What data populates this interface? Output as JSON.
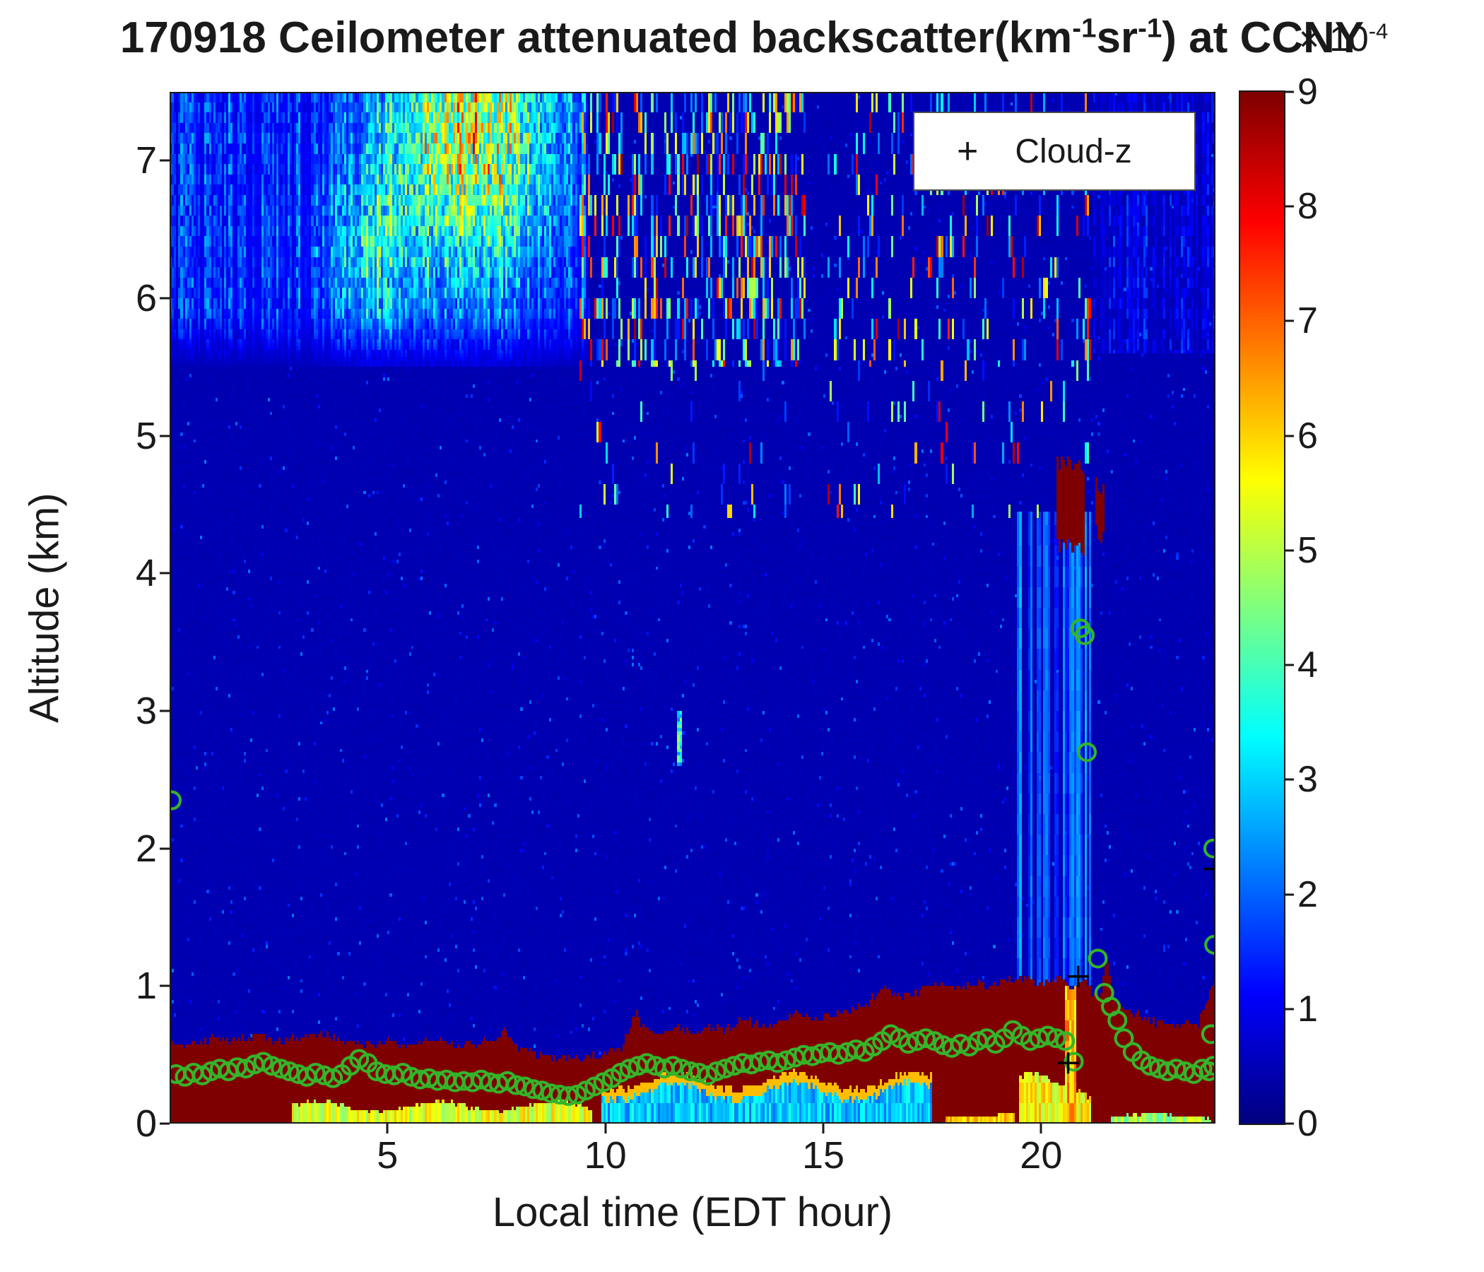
{
  "chart_data": {
    "type": "heatmap",
    "title_parts": {
      "prefix": "170918 Ceilometer attenuated backscatter(km",
      "sup1": "-1",
      "mid": "sr",
      "sup2": "-1",
      "suffix": ") at CCNY"
    },
    "xlabel": "Local time (EDT hour)",
    "ylabel": "Altitude (km)",
    "xlim": [
      0,
      24
    ],
    "ylim": [
      0,
      7.5
    ],
    "xticks": [
      5,
      10,
      15,
      20
    ],
    "yticks": [
      0,
      1,
      2,
      3,
      4,
      5,
      6,
      7
    ],
    "colorbar": {
      "min": 0,
      "max": 9,
      "ticks": [
        0,
        1,
        2,
        3,
        4,
        5,
        6,
        7,
        8,
        9
      ],
      "multiplier_parts": {
        "base": "× 10",
        "exp": "-4"
      },
      "colormap": "jet"
    },
    "legend": {
      "marker": "+",
      "label": "Cloud-z"
    },
    "colors": {
      "circle": "#35b42a",
      "plus": "#000000",
      "axis": "#1a1a1a"
    },
    "series": {
      "pbl_height_circles": [
        [
          0.05,
          2.35
        ],
        [
          0.15,
          0.36
        ],
        [
          0.35,
          0.34
        ],
        [
          0.55,
          0.37
        ],
        [
          0.75,
          0.35
        ],
        [
          0.95,
          0.38
        ],
        [
          1.15,
          0.4
        ],
        [
          1.35,
          0.38
        ],
        [
          1.55,
          0.41
        ],
        [
          1.75,
          0.4
        ],
        [
          1.95,
          0.43
        ],
        [
          2.15,
          0.45
        ],
        [
          2.35,
          0.42
        ],
        [
          2.55,
          0.4
        ],
        [
          2.75,
          0.38
        ],
        [
          2.95,
          0.36
        ],
        [
          3.15,
          0.34
        ],
        [
          3.35,
          0.37
        ],
        [
          3.55,
          0.35
        ],
        [
          3.75,
          0.33
        ],
        [
          3.95,
          0.36
        ],
        [
          4.15,
          0.42
        ],
        [
          4.35,
          0.47
        ],
        [
          4.55,
          0.44
        ],
        [
          4.75,
          0.38
        ],
        [
          4.95,
          0.36
        ],
        [
          5.15,
          0.35
        ],
        [
          5.35,
          0.37
        ],
        [
          5.55,
          0.34
        ],
        [
          5.75,
          0.32
        ],
        [
          5.95,
          0.33
        ],
        [
          6.15,
          0.31
        ],
        [
          6.35,
          0.32
        ],
        [
          6.55,
          0.3
        ],
        [
          6.75,
          0.31
        ],
        [
          6.95,
          0.3
        ],
        [
          7.15,
          0.32
        ],
        [
          7.35,
          0.3
        ],
        [
          7.55,
          0.29
        ],
        [
          7.75,
          0.31
        ],
        [
          7.95,
          0.28
        ],
        [
          8.15,
          0.27
        ],
        [
          8.35,
          0.25
        ],
        [
          8.55,
          0.24
        ],
        [
          8.75,
          0.22
        ],
        [
          8.95,
          0.21
        ],
        [
          9.15,
          0.2
        ],
        [
          9.35,
          0.21
        ],
        [
          9.55,
          0.24
        ],
        [
          9.75,
          0.27
        ],
        [
          9.95,
          0.3
        ],
        [
          10.15,
          0.33
        ],
        [
          10.35,
          0.37
        ],
        [
          10.55,
          0.4
        ],
        [
          10.75,
          0.42
        ],
        [
          10.95,
          0.44
        ],
        [
          11.15,
          0.42
        ],
        [
          11.35,
          0.4
        ],
        [
          11.55,
          0.42
        ],
        [
          11.75,
          0.4
        ],
        [
          11.95,
          0.38
        ],
        [
          12.15,
          0.37
        ],
        [
          12.35,
          0.35
        ],
        [
          12.55,
          0.38
        ],
        [
          12.75,
          0.4
        ],
        [
          12.95,
          0.42
        ],
        [
          13.15,
          0.44
        ],
        [
          13.35,
          0.43
        ],
        [
          13.55,
          0.45
        ],
        [
          13.75,
          0.46
        ],
        [
          13.95,
          0.44
        ],
        [
          14.15,
          0.46
        ],
        [
          14.35,
          0.48
        ],
        [
          14.55,
          0.5
        ],
        [
          14.75,
          0.49
        ],
        [
          14.95,
          0.51
        ],
        [
          15.15,
          0.52
        ],
        [
          15.35,
          0.5
        ],
        [
          15.55,
          0.52
        ],
        [
          15.75,
          0.54
        ],
        [
          15.95,
          0.52
        ],
        [
          16.15,
          0.56
        ],
        [
          16.35,
          0.6
        ],
        [
          16.55,
          0.65
        ],
        [
          16.75,
          0.62
        ],
        [
          16.95,
          0.58
        ],
        [
          17.15,
          0.6
        ],
        [
          17.35,
          0.62
        ],
        [
          17.55,
          0.6
        ],
        [
          17.75,
          0.57
        ],
        [
          17.95,
          0.55
        ],
        [
          18.15,
          0.58
        ],
        [
          18.35,
          0.56
        ],
        [
          18.55,
          0.6
        ],
        [
          18.75,
          0.62
        ],
        [
          18.95,
          0.58
        ],
        [
          19.15,
          0.62
        ],
        [
          19.35,
          0.68
        ],
        [
          19.55,
          0.64
        ],
        [
          19.75,
          0.6
        ],
        [
          19.95,
          0.62
        ],
        [
          20.15,
          0.64
        ],
        [
          20.35,
          0.62
        ],
        [
          20.55,
          0.6
        ],
        [
          20.75,
          0.45
        ],
        [
          20.9,
          3.6
        ],
        [
          21.0,
          3.55
        ],
        [
          21.05,
          2.7
        ],
        [
          21.3,
          1.2
        ],
        [
          21.45,
          0.95
        ],
        [
          21.6,
          0.85
        ],
        [
          21.75,
          0.75
        ],
        [
          21.9,
          0.62
        ],
        [
          22.1,
          0.52
        ],
        [
          22.3,
          0.46
        ],
        [
          22.5,
          0.42
        ],
        [
          22.7,
          0.4
        ],
        [
          22.9,
          0.38
        ],
        [
          23.1,
          0.4
        ],
        [
          23.3,
          0.38
        ],
        [
          23.5,
          0.36
        ],
        [
          23.7,
          0.4
        ],
        [
          23.85,
          0.38
        ],
        [
          23.9,
          0.65
        ],
        [
          23.95,
          0.42
        ],
        [
          23.95,
          2.0
        ],
        [
          23.97,
          1.3
        ]
      ],
      "cloud_z_plus": [
        [
          20.85,
          1.07
        ],
        [
          20.62,
          0.44
        ],
        [
          23.97,
          1.85
        ]
      ]
    },
    "heatmap_model": {
      "seed": 7,
      "background": 0.45,
      "grid": {
        "nx": 480,
        "ny": 300
      },
      "pbl_top_points": [
        [
          0,
          0.6
        ],
        [
          0.5,
          0.58
        ],
        [
          1,
          0.62
        ],
        [
          1.5,
          0.6
        ],
        [
          2,
          0.64
        ],
        [
          2.5,
          0.6
        ],
        [
          3,
          0.62
        ],
        [
          3.5,
          0.66
        ],
        [
          4,
          0.6
        ],
        [
          4.5,
          0.58
        ],
        [
          5,
          0.6
        ],
        [
          5.5,
          0.57
        ],
        [
          6,
          0.6
        ],
        [
          6.5,
          0.58
        ],
        [
          7,
          0.57
        ],
        [
          7.5,
          0.6
        ],
        [
          7.7,
          0.7
        ],
        [
          7.9,
          0.58
        ],
        [
          8.3,
          0.52
        ],
        [
          8.7,
          0.48
        ],
        [
          9.2,
          0.46
        ],
        [
          9.6,
          0.48
        ],
        [
          10,
          0.5
        ],
        [
          10.4,
          0.55
        ],
        [
          10.7,
          0.8
        ],
        [
          10.9,
          0.7
        ],
        [
          11.2,
          0.66
        ],
        [
          11.6,
          0.7
        ],
        [
          12,
          0.66
        ],
        [
          12.4,
          0.7
        ],
        [
          12.8,
          0.68
        ],
        [
          13.2,
          0.76
        ],
        [
          13.6,
          0.7
        ],
        [
          14,
          0.74
        ],
        [
          14.4,
          0.8
        ],
        [
          14.8,
          0.76
        ],
        [
          15.2,
          0.78
        ],
        [
          15.6,
          0.82
        ],
        [
          16,
          0.88
        ],
        [
          16.4,
          0.98
        ],
        [
          16.8,
          0.92
        ],
        [
          17.2,
          0.96
        ],
        [
          17.6,
          1.02
        ],
        [
          18,
          0.98
        ],
        [
          18.4,
          1.02
        ],
        [
          18.8,
          1.0
        ],
        [
          19.2,
          1.04
        ],
        [
          19.6,
          1.06
        ],
        [
          20,
          1.0
        ],
        [
          20.4,
          1.06
        ],
        [
          20.7,
          0.96
        ],
        [
          21,
          1.08
        ],
        [
          21.2,
          0.92
        ],
        [
          21.35,
          0.92
        ],
        [
          21.5,
          1.2
        ],
        [
          21.65,
          0.9
        ],
        [
          22,
          0.82
        ],
        [
          22.4,
          0.76
        ],
        [
          22.8,
          0.72
        ],
        [
          23.2,
          0.74
        ],
        [
          23.6,
          0.7
        ],
        [
          23.85,
          0.95
        ],
        [
          24,
          1.05
        ]
      ],
      "upper_aerosol": {
        "x": [
          0,
          9.6
        ],
        "y_min": 5.5
      },
      "hotspot": {
        "cx": 6.9,
        "cy": 7.25,
        "rx": 1.3,
        "ry": 0.75,
        "amp": 5.8
      },
      "secondary_hotspot": {
        "cx": 4.6,
        "cy": 6.35,
        "rx": 0.7,
        "ry": 0.45,
        "amp": 2.2
      },
      "upper_right": {
        "x_min": 21.2,
        "y_min": 5.6
      },
      "virga": {
        "x": [
          9.4,
          21.3
        ],
        "y_min": 4.4
      },
      "deep_streak": {
        "x": 11.7,
        "y": [
          2.6,
          3.0
        ]
      },
      "rain": {
        "x": [
          19.45,
          21.15
        ],
        "y": [
          1.0,
          4.45
        ],
        "val": 2.2
      },
      "clouds": [
        [
          20.35,
          21.0,
          4.2,
          4.8
        ],
        [
          21.25,
          21.45,
          4.3,
          4.65
        ]
      ],
      "bottom_bands": [
        {
          "x": [
            2.8,
            9.7
          ],
          "top": 0.14,
          "val": 5.4
        },
        {
          "x": [
            9.9,
            17.5
          ],
          "top": 0.26,
          "val": 2.9
        },
        {
          "x": [
            17.8,
            19.4
          ],
          "top": 0.07,
          "val": 6.0
        },
        {
          "x": [
            19.5,
            21.15
          ],
          "top": 0.32,
          "val": 5.6
        },
        {
          "x": [
            21.6,
            23.9
          ],
          "top": 0.06,
          "val": 4.8
        }
      ],
      "bright_column": {
        "x": [
          20.55,
          20.78
        ],
        "top": 1.0,
        "val": 5.2
      }
    }
  }
}
